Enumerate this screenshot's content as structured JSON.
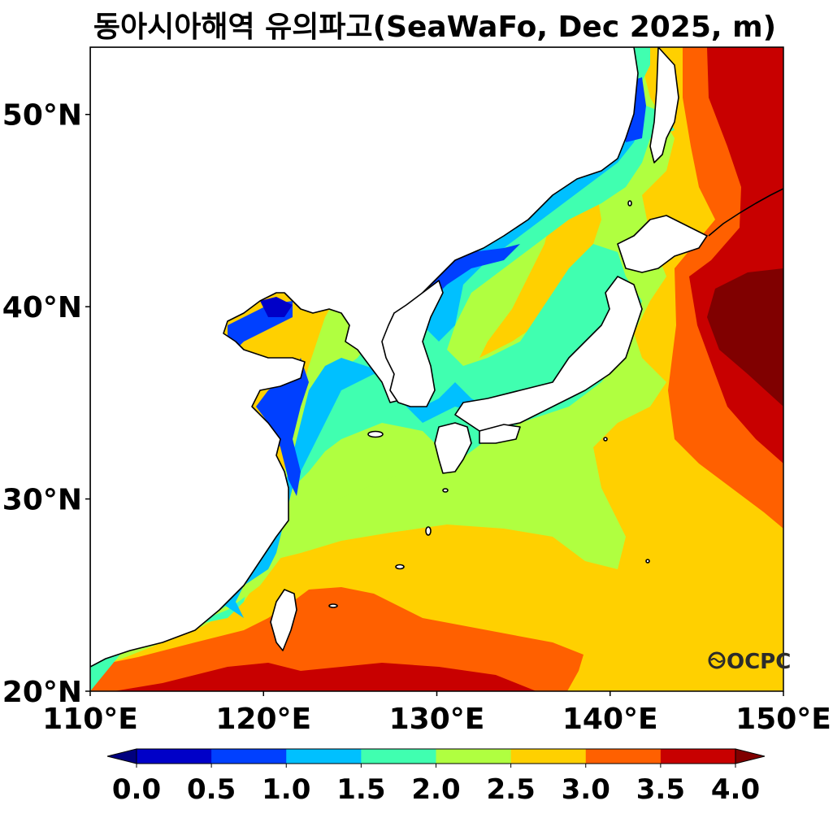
{
  "title": "동아시아해역 유의파고(SeaWaFo, Dec 2025, m)",
  "map": {
    "lon_range": [
      110,
      150
    ],
    "lat_range": [
      20,
      53.5
    ],
    "projection": "equirectangular",
    "x_ticks": [
      {
        "lon": 110,
        "label": "110°E"
      },
      {
        "lon": 120,
        "label": "120°E"
      },
      {
        "lon": 130,
        "label": "130°E"
      },
      {
        "lon": 140,
        "label": "140°E"
      },
      {
        "lon": 150,
        "label": "150°E"
      }
    ],
    "y_ticks": [
      {
        "lat": 20,
        "label": "20°N"
      },
      {
        "lat": 30,
        "label": "30°N"
      },
      {
        "lat": 40,
        "label": "40°N"
      },
      {
        "lat": 50,
        "label": "50°N"
      }
    ],
    "field": "significant wave height",
    "unit": "m"
  },
  "colorbar": {
    "levels": [
      0.0,
      0.5,
      1.0,
      1.5,
      2.0,
      2.5,
      3.0,
      3.5,
      4.0
    ],
    "labels": [
      "0.0",
      "0.5",
      "1.0",
      "1.5",
      "2.0",
      "2.5",
      "3.0",
      "3.5",
      "4.0"
    ],
    "colors": [
      "#0000c8",
      "#0040ff",
      "#00c0ff",
      "#40ffb0",
      "#b0ff40",
      "#ffd000",
      "#ff6000",
      "#c80000"
    ],
    "under_color": "#00007f",
    "over_color": "#800000",
    "extend": "both"
  },
  "logo": {
    "text": "OCPC"
  }
}
